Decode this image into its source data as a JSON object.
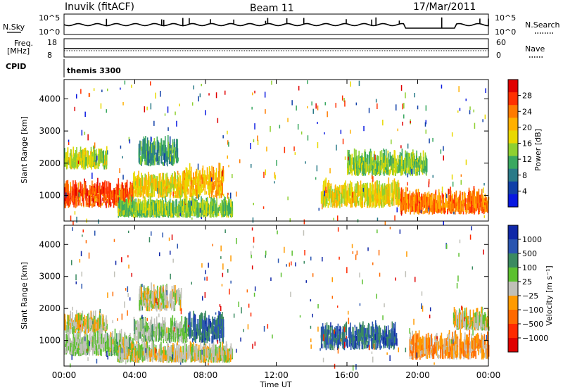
{
  "header": {
    "station": "Inuvik (fitACF)",
    "beam": "Beam 11",
    "date": "17/Mar/2011"
  },
  "panels": {
    "nsky": {
      "left_label": "N.Sky",
      "right_label": "N.Search",
      "left_ticks": [
        "10^5",
        "10^0"
      ],
      "right_ticks": [
        "10^5",
        "10^0"
      ]
    },
    "freq": {
      "label_line1": "Freq.",
      "label_line2": "[MHz]",
      "left_ticks": [
        "18",
        "8"
      ],
      "right_label": "Nave",
      "right_ticks": [
        "60",
        "0"
      ]
    },
    "cpid": {
      "label": "CPID",
      "program": "themis 3300"
    }
  },
  "chart_data": [
    {
      "type": "heatmap",
      "name": "power",
      "ylabel": "Slant Range [km]",
      "ylim": [
        200,
        4600
      ],
      "y_ticks": [
        "1000",
        "2000",
        "3000",
        "4000"
      ],
      "y_tick_values": [
        1000,
        2000,
        3000,
        4000
      ],
      "colorbar_label": "Power [dB]",
      "colorbar_ticks": [
        "28",
        "24",
        "20",
        "16",
        "12",
        "8",
        "4"
      ],
      "colorbar_colors": [
        "#e00000",
        "#ff3000",
        "#ff7a00",
        "#ffb000",
        "#e8d800",
        "#8ed030",
        "#3aa860",
        "#2a7a88",
        "#1040a8",
        "#0818e0"
      ],
      "colorbar_range": [
        0,
        32
      ],
      "regions": [
        {
          "t0": 0.0,
          "t1": 3.9,
          "r0": 600,
          "r1": 1400,
          "level": 26
        },
        {
          "t0": 3.9,
          "t1": 6.9,
          "r0": 900,
          "r1": 1600,
          "level": 18
        },
        {
          "t0": 4.2,
          "t1": 6.4,
          "r0": 1900,
          "r1": 2800,
          "level": 10
        },
        {
          "t0": 6.7,
          "t1": 9.0,
          "r0": 900,
          "r1": 2000,
          "level": 20
        },
        {
          "t0": 3.0,
          "t1": 9.5,
          "r0": 300,
          "r1": 700,
          "level": 14
        },
        {
          "t0": 14.5,
          "t1": 19.0,
          "r0": 600,
          "r1": 1400,
          "level": 18
        },
        {
          "t0": 16.0,
          "t1": 20.5,
          "r0": 1600,
          "r1": 2300,
          "level": 14
        },
        {
          "t0": 19.0,
          "t1": 24.0,
          "r0": 400,
          "r1": 1100,
          "level": 24
        },
        {
          "t0": 0.0,
          "t1": 2.4,
          "r0": 1800,
          "r1": 2300,
          "level": 16
        }
      ]
    },
    {
      "type": "heatmap",
      "name": "velocity",
      "ylabel": "Slant Range [km]",
      "ylim": [
        200,
        4600
      ],
      "y_ticks": [
        "1000",
        "2000",
        "3000",
        "4000"
      ],
      "y_tick_values": [
        1000,
        2000,
        3000,
        4000
      ],
      "colorbar_label": "Velocity [m s⁻¹]",
      "colorbar_ticks": [
        "1000",
        "500",
        "100",
        "25",
        "−25",
        "−100",
        "−500",
        "−1000"
      ],
      "colorbar_colors": [
        "#1028a8",
        "#2a55b0",
        "#3a8a60",
        "#5cc030",
        "#c0c0b8",
        "#ff9a00",
        "#ff6a00",
        "#ff2a00",
        "#e00000"
      ],
      "colorbar_range": [
        -1200,
        1200
      ],
      "regions": [
        {
          "t0": 0.0,
          "t1": 3.9,
          "r0": 500,
          "r1": 1200,
          "level": 150
        },
        {
          "t0": 0.0,
          "t1": 2.4,
          "r0": 1200,
          "r1": 1700,
          "level": 0
        },
        {
          "t0": 3.9,
          "t1": 7.0,
          "r0": 900,
          "r1": 1700,
          "level": 200
        },
        {
          "t0": 4.2,
          "t1": 6.6,
          "r0": 1900,
          "r1": 2700,
          "level": 0
        },
        {
          "t0": 7.0,
          "t1": 9.0,
          "r0": 900,
          "r1": 1900,
          "level": 700
        },
        {
          "t0": 3.0,
          "t1": 9.5,
          "r0": 300,
          "r1": 700,
          "level": 20
        },
        {
          "t0": 14.5,
          "t1": 18.8,
          "r0": 700,
          "r1": 1500,
          "level": 700
        },
        {
          "t0": 19.5,
          "t1": 24.0,
          "r0": 400,
          "r1": 1200,
          "level": -300
        },
        {
          "t0": 22.0,
          "t1": 24.0,
          "r0": 1300,
          "r1": 1800,
          "level": 0
        }
      ]
    }
  ],
  "x_axis": {
    "label": "Time UT",
    "ticks": [
      "00:00",
      "04:00",
      "08:00",
      "12:00",
      "16:00",
      "20:00",
      "00:00"
    ],
    "tick_values": [
      0,
      4,
      8,
      12,
      16,
      20,
      24
    ],
    "xlim": [
      0,
      24
    ]
  }
}
